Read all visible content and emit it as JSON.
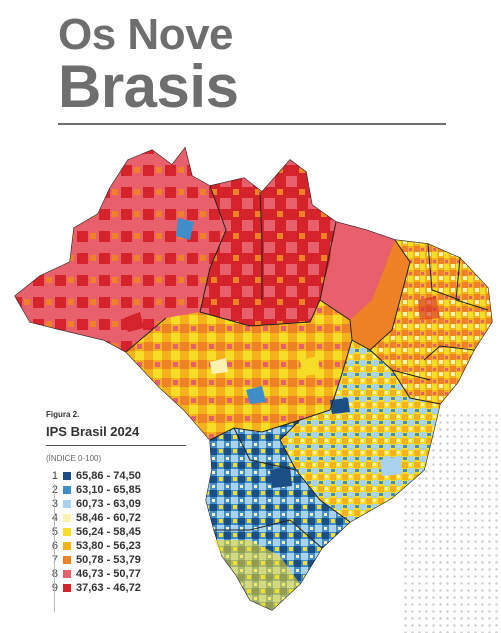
{
  "header": {
    "title_line1": "Os Nove",
    "title_line2": "Brasis"
  },
  "legend": {
    "figure_label": "Figura 2.",
    "title": "IPS Brasil 2024",
    "index_note": "(ÍNDICE 0-100)",
    "items": [
      {
        "num": "1",
        "range": "65,86 - 74,50",
        "color": "#1c4e86"
      },
      {
        "num": "2",
        "range": "63,10 - 65,85",
        "color": "#3f8ec9"
      },
      {
        "num": "3",
        "range": "60,73 - 63,09",
        "color": "#a8d2ee"
      },
      {
        "num": "4",
        "range": "58,46 - 60,72",
        "color": "#fcf3b0"
      },
      {
        "num": "5",
        "range": "56,24 - 58,45",
        "color": "#f6dd28"
      },
      {
        "num": "6",
        "range": "53,80 - 56,23",
        "color": "#f6b21c"
      },
      {
        "num": "7",
        "range": "50,78 - 53,79",
        "color": "#ef8127"
      },
      {
        "num": "8",
        "range": "46,73 - 50,77",
        "color": "#e8606b"
      },
      {
        "num": "9",
        "range": "37,63 - 46,72",
        "color": "#d5232b"
      }
    ]
  }
}
